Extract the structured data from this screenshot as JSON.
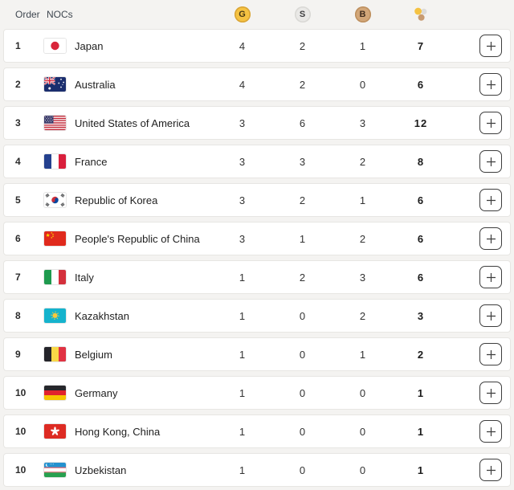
{
  "header": {
    "order_label": "Order",
    "nocs_label": "NOCs",
    "gold_label": "G",
    "silver_label": "S",
    "bronze_label": "B"
  },
  "colors": {
    "gold": "#f5c242",
    "silver": "#dcdbd9",
    "bronze": "#c89b71",
    "page_background": "#f4f3f1",
    "card_background": "#ffffff"
  },
  "expand_symbol": "+",
  "rows": [
    {
      "order": "1",
      "noc": "Japan",
      "flag": "jp",
      "gold": "4",
      "silver": "2",
      "bronze": "1",
      "total": "7"
    },
    {
      "order": "2",
      "noc": "Australia",
      "flag": "au",
      "gold": "4",
      "silver": "2",
      "bronze": "0",
      "total": "6"
    },
    {
      "order": "3",
      "noc": "United States of America",
      "flag": "us",
      "gold": "3",
      "silver": "6",
      "bronze": "3",
      "total": "12"
    },
    {
      "order": "4",
      "noc": "France",
      "flag": "fr",
      "gold": "3",
      "silver": "3",
      "bronze": "2",
      "total": "8"
    },
    {
      "order": "5",
      "noc": "Republic of Korea",
      "flag": "kr",
      "gold": "3",
      "silver": "2",
      "bronze": "1",
      "total": "6"
    },
    {
      "order": "6",
      "noc": "People's Republic of China",
      "flag": "cn",
      "gold": "3",
      "silver": "1",
      "bronze": "2",
      "total": "6"
    },
    {
      "order": "7",
      "noc": "Italy",
      "flag": "it",
      "gold": "1",
      "silver": "2",
      "bronze": "3",
      "total": "6"
    },
    {
      "order": "8",
      "noc": "Kazakhstan",
      "flag": "kz",
      "gold": "1",
      "silver": "0",
      "bronze": "2",
      "total": "3"
    },
    {
      "order": "9",
      "noc": "Belgium",
      "flag": "be",
      "gold": "1",
      "silver": "0",
      "bronze": "1",
      "total": "2"
    },
    {
      "order": "10",
      "noc": "Germany",
      "flag": "de",
      "gold": "1",
      "silver": "0",
      "bronze": "0",
      "total": "1"
    },
    {
      "order": "10",
      "noc": "Hong Kong, China",
      "flag": "hk",
      "gold": "1",
      "silver": "0",
      "bronze": "0",
      "total": "1"
    },
    {
      "order": "10",
      "noc": "Uzbekistan",
      "flag": "uz",
      "gold": "1",
      "silver": "0",
      "bronze": "0",
      "total": "1"
    }
  ]
}
